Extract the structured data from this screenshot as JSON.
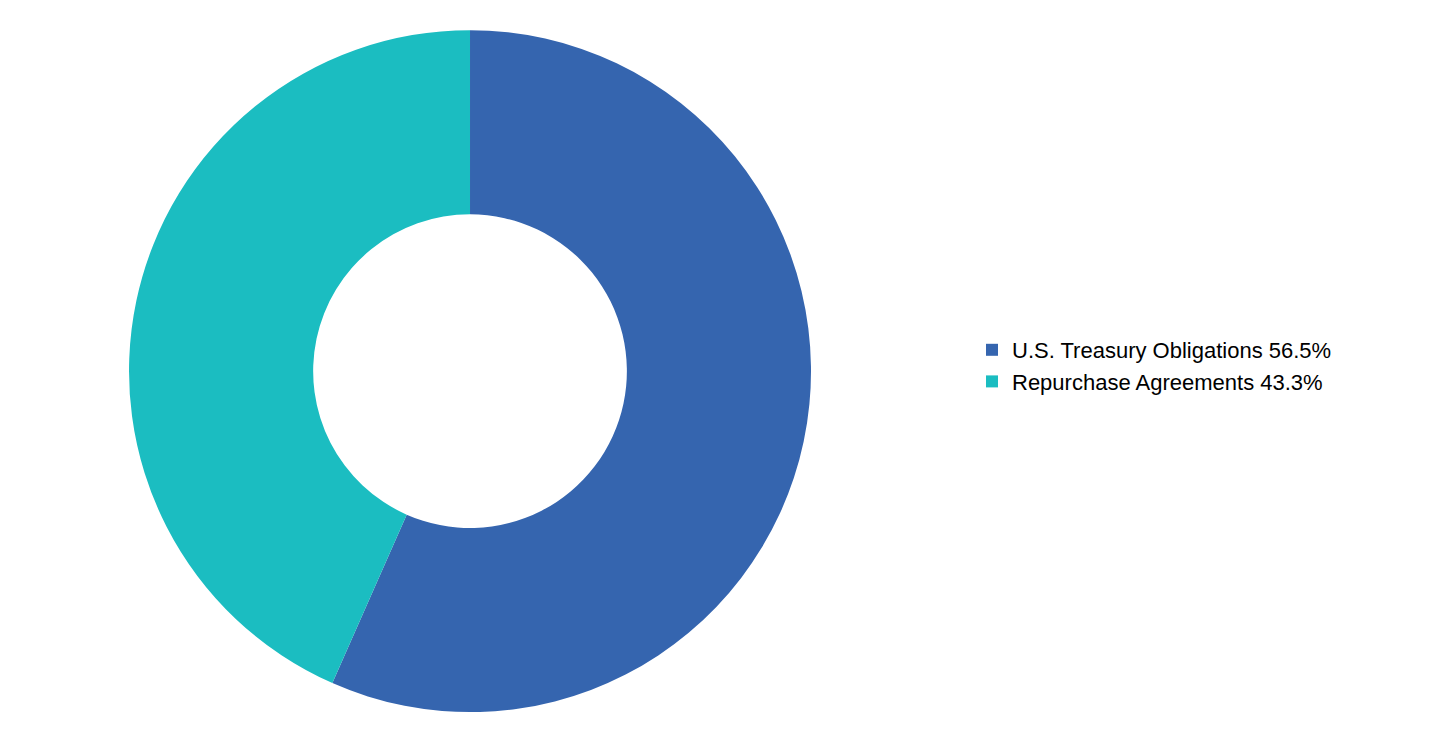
{
  "chart_data": {
    "type": "donut",
    "categories": [
      "U.S. Treasury Obligations 56.5%",
      "Repurchase Agreements 43.3%"
    ],
    "values": [
      56.5,
      43.3
    ],
    "colors": [
      "#3565af",
      "#1bbdc1"
    ],
    "legend": "right"
  }
}
